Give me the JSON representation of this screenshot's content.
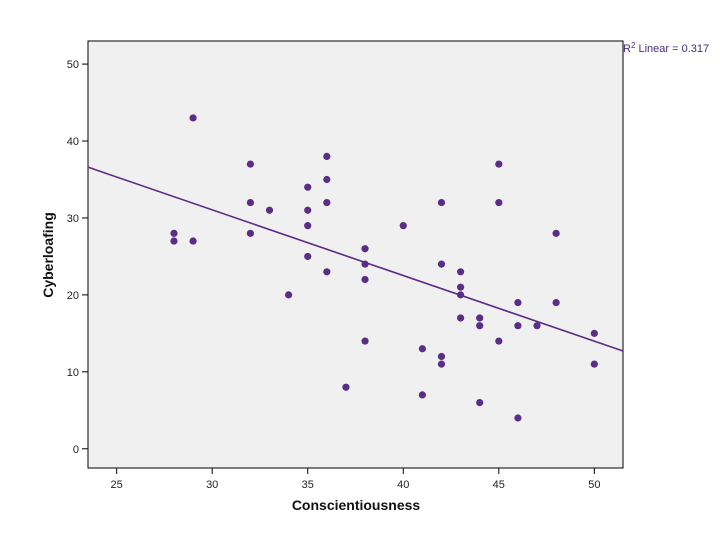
{
  "chart_data": {
    "type": "scatter",
    "xlabel": "Conscientiousness",
    "ylabel": "Cyberloafing",
    "xlim": [
      23.5,
      51.5
    ],
    "ylim": [
      -2.5,
      53
    ],
    "x_ticks": [
      25,
      30,
      35,
      40,
      45,
      50
    ],
    "y_ticks": [
      0,
      10,
      20,
      30,
      40,
      50
    ],
    "grid": false,
    "point_color": "#5a2d86",
    "line_color": "#5a2d86",
    "plot_background": "#f0f0f0",
    "fit_line": {
      "type": "linear",
      "x": [
        23.5,
        51.5
      ],
      "y": [
        36.6,
        12.7
      ]
    },
    "annotation": {
      "prefix": "R",
      "superscript": "2",
      "text": " Linear = 0.317"
    },
    "points": [
      {
        "x": 28,
        "y": 28
      },
      {
        "x": 28,
        "y": 27
      },
      {
        "x": 29,
        "y": 43
      },
      {
        "x": 29,
        "y": 27
      },
      {
        "x": 32,
        "y": 37
      },
      {
        "x": 32,
        "y": 32
      },
      {
        "x": 32,
        "y": 28
      },
      {
        "x": 33,
        "y": 31
      },
      {
        "x": 34,
        "y": 20
      },
      {
        "x": 35,
        "y": 34
      },
      {
        "x": 35,
        "y": 31
      },
      {
        "x": 35,
        "y": 29
      },
      {
        "x": 35,
        "y": 25
      },
      {
        "x": 36,
        "y": 38
      },
      {
        "x": 36,
        "y": 35
      },
      {
        "x": 36,
        "y": 32
      },
      {
        "x": 36,
        "y": 23
      },
      {
        "x": 37,
        "y": 8
      },
      {
        "x": 38,
        "y": 26
      },
      {
        "x": 38,
        "y": 24
      },
      {
        "x": 38,
        "y": 22
      },
      {
        "x": 38,
        "y": 14
      },
      {
        "x": 40,
        "y": 29
      },
      {
        "x": 41,
        "y": 13
      },
      {
        "x": 41,
        "y": 7
      },
      {
        "x": 42,
        "y": 32
      },
      {
        "x": 42,
        "y": 24
      },
      {
        "x": 42,
        "y": 12
      },
      {
        "x": 42,
        "y": 11
      },
      {
        "x": 43,
        "y": 23
      },
      {
        "x": 43,
        "y": 21
      },
      {
        "x": 43,
        "y": 20
      },
      {
        "x": 43,
        "y": 17
      },
      {
        "x": 44,
        "y": 17
      },
      {
        "x": 44,
        "y": 16
      },
      {
        "x": 44,
        "y": 6
      },
      {
        "x": 45,
        "y": 37
      },
      {
        "x": 45,
        "y": 32
      },
      {
        "x": 45,
        "y": 14
      },
      {
        "x": 46,
        "y": 19
      },
      {
        "x": 46,
        "y": 16
      },
      {
        "x": 46,
        "y": 4
      },
      {
        "x": 47,
        "y": 16
      },
      {
        "x": 48,
        "y": 28
      },
      {
        "x": 48,
        "y": 19
      },
      {
        "x": 50,
        "y": 15
      },
      {
        "x": 50,
        "y": 11
      }
    ]
  }
}
